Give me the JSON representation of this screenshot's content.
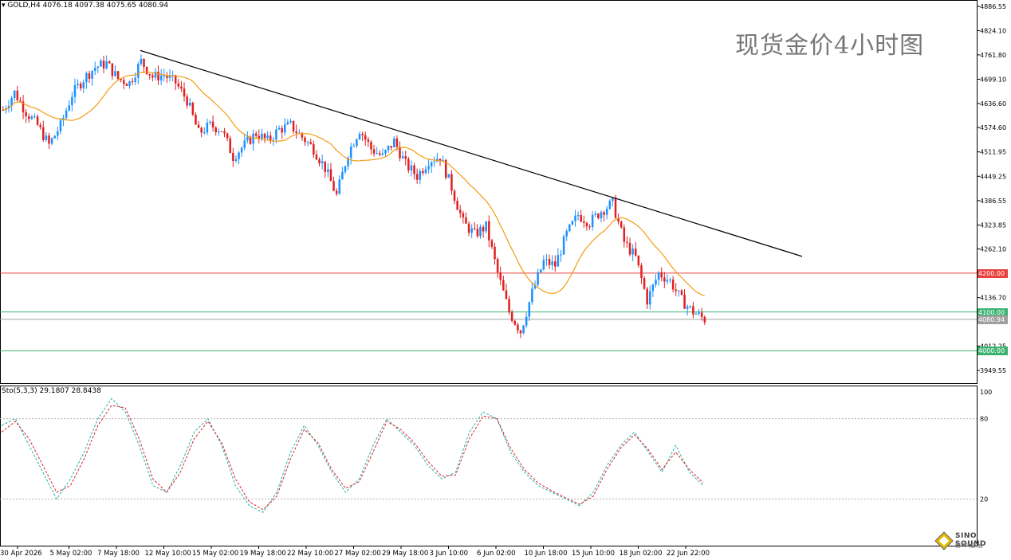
{
  "header": {
    "symbol_ohlc": "GOLD,H4  4076.18 4097.38 4075.65 4080.94"
  },
  "watermark": {
    "text": "现货金价4小时图"
  },
  "stochastic": {
    "label": "Sto(5,3,3) 29.1807 28.8438",
    "levels": [
      "100",
      "80",
      "20"
    ]
  },
  "price_axis": {
    "ticks": [
      "4886.55",
      "4824.10",
      "4761.80",
      "4699.10",
      "4636.60",
      "4574.60",
      "4511.95",
      "4449.25",
      "4386.55",
      "4323.85",
      "4262.10",
      "4136.70",
      "4012.25",
      "3949.55"
    ]
  },
  "horizontal_lines": [
    {
      "price": 4200.0,
      "label": "4200.00",
      "color": "#e8403d"
    },
    {
      "price": 4100.0,
      "label": "4100.00",
      "color": "#3cb371"
    },
    {
      "price": 4080.94,
      "label": "4080.94",
      "color": "#a0a0a0"
    },
    {
      "price": 4000.0,
      "label": "4000.00",
      "color": "#3cb371"
    }
  ],
  "time_axis": {
    "labels": [
      "30 Apr 2026",
      "5 May 02:00",
      "7 May 18:00",
      "12 May 10:00",
      "15 May 02:00",
      "19 May 18:00",
      "22 May 10:00",
      "27 May 02:00",
      "29 May 18:00",
      "3 Jun 10:00",
      "6 Jun 02:00",
      "10 Jun 18:00",
      "15 Jun 10:00",
      "18 Jun 02:00",
      "22 Jun 22:00"
    ]
  },
  "logo": {
    "text": "SINO SOUND",
    "sub": "新 华 亚 通"
  },
  "colors": {
    "bull": "#1e90ff",
    "bear": "#e02020",
    "ma": "#f39c12",
    "trendline": "#000000",
    "stoch_main": "#20b2aa",
    "stoch_signal": "#e02020"
  },
  "chart_data": {
    "type": "candlestick",
    "title": "现货金价4小时图",
    "symbol": "GOLD",
    "timeframe": "H4",
    "ylim": [
      3949.55,
      4886.55
    ],
    "overlays": [
      "moving average (orange)",
      "descending trendline (black)"
    ],
    "price_path": [
      [
        0,
        4620
      ],
      [
        4,
        4665
      ],
      [
        8,
        4615
      ],
      [
        12,
        4580
      ],
      [
        16,
        4530
      ],
      [
        20,
        4580
      ],
      [
        24,
        4660
      ],
      [
        28,
        4700
      ],
      [
        32,
        4730
      ],
      [
        36,
        4740
      ],
      [
        40,
        4700
      ],
      [
        44,
        4690
      ],
      [
        48,
        4745
      ],
      [
        52,
        4705
      ],
      [
        56,
        4710
      ],
      [
        60,
        4690
      ],
      [
        64,
        4645
      ],
      [
        68,
        4560
      ],
      [
        72,
        4580
      ],
      [
        76,
        4570
      ],
      [
        80,
        4500
      ],
      [
        84,
        4530
      ],
      [
        88,
        4560
      ],
      [
        92,
        4540
      ],
      [
        96,
        4570
      ],
      [
        100,
        4580
      ],
      [
        104,
        4550
      ],
      [
        108,
        4520
      ],
      [
        112,
        4470
      ],
      [
        116,
        4400
      ],
      [
        120,
        4510
      ],
      [
        124,
        4570
      ],
      [
        128,
        4520
      ],
      [
        132,
        4500
      ],
      [
        136,
        4540
      ],
      [
        140,
        4480
      ],
      [
        144,
        4450
      ],
      [
        148,
        4490
      ],
      [
        152,
        4500
      ],
      [
        156,
        4420
      ],
      [
        160,
        4330
      ],
      [
        164,
        4300
      ],
      [
        168,
        4320
      ],
      [
        172,
        4200
      ],
      [
        176,
        4100
      ],
      [
        180,
        4050
      ],
      [
        184,
        4150
      ],
      [
        188,
        4230
      ],
      [
        192,
        4220
      ],
      [
        196,
        4300
      ],
      [
        200,
        4350
      ],
      [
        204,
        4330
      ],
      [
        208,
        4360
      ],
      [
        212,
        4380
      ],
      [
        216,
        4280
      ],
      [
        220,
        4240
      ],
      [
        224,
        4130
      ],
      [
        228,
        4200
      ],
      [
        232,
        4180
      ],
      [
        236,
        4130
      ],
      [
        240,
        4100
      ],
      [
        244,
        4081
      ]
    ],
    "stochastic": {
      "main": [
        75,
        80,
        60,
        40,
        20,
        35,
        55,
        80,
        95,
        85,
        60,
        30,
        25,
        45,
        70,
        80,
        60,
        30,
        15,
        10,
        25,
        55,
        75,
        60,
        40,
        25,
        35,
        60,
        80,
        70,
        60,
        45,
        35,
        40,
        70,
        85,
        80,
        55,
        40,
        30,
        25,
        20,
        15,
        25,
        45,
        60,
        70,
        55,
        40,
        60,
        40,
        30
      ],
      "signal": [
        70,
        78,
        65,
        45,
        25,
        30,
        50,
        75,
        90,
        88,
        65,
        35,
        25,
        40,
        65,
        78,
        62,
        35,
        18,
        12,
        22,
        50,
        72,
        62,
        42,
        28,
        33,
        55,
        78,
        72,
        62,
        48,
        37,
        38,
        65,
        82,
        80,
        58,
        42,
        32,
        26,
        21,
        16,
        22,
        42,
        58,
        68,
        57,
        42,
        55,
        42,
        32
      ],
      "ylim": [
        0,
        100
      ]
    }
  }
}
